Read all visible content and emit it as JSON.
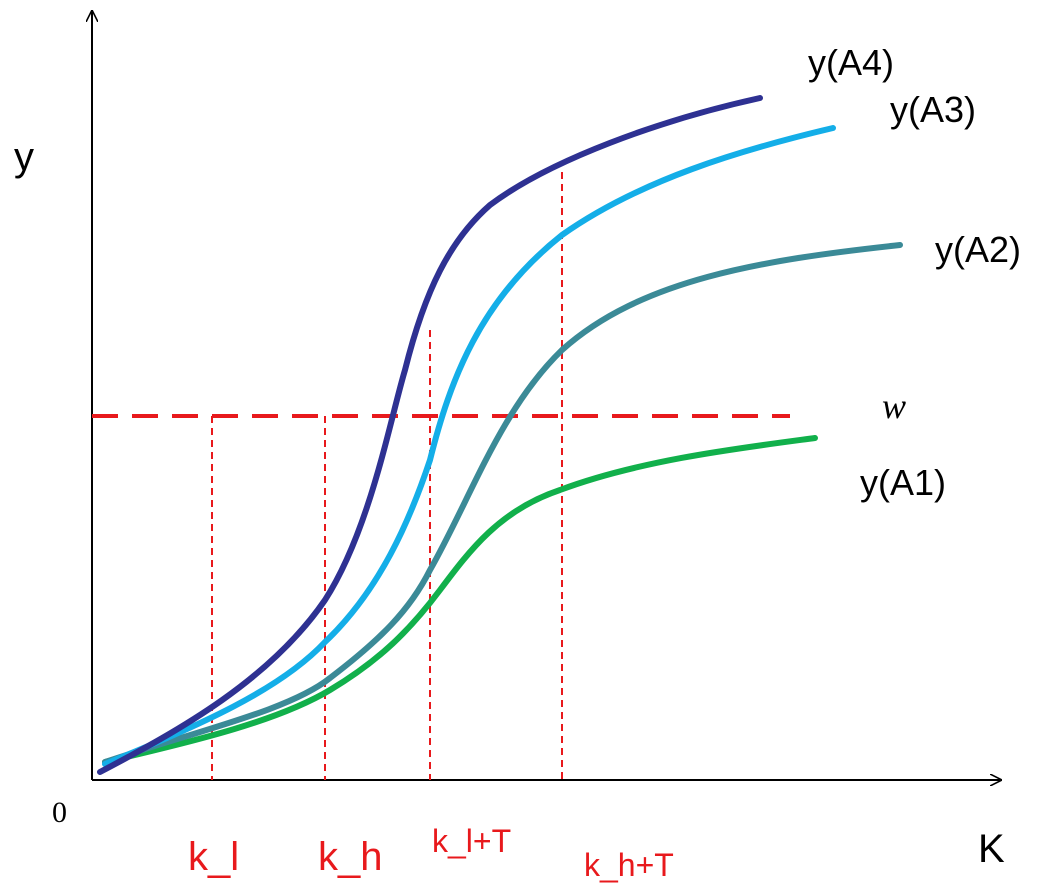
{
  "axes": {
    "y_label": "y",
    "x_label": "K",
    "origin_label": "0"
  },
  "threshold": {
    "label": "w",
    "color": "#e8191c"
  },
  "curves": [
    {
      "name": "y(A1)",
      "color": "#11b04b"
    },
    {
      "name": "y(A2)",
      "color": "#3b8a97"
    },
    {
      "name": "y(A3)",
      "color": "#14aee8"
    },
    {
      "name": "y(A4)",
      "color": "#2e3192"
    }
  ],
  "markers": [
    {
      "label": "k_l"
    },
    {
      "label": "k_h"
    },
    {
      "label": "k_l+T"
    },
    {
      "label": "k_h+T"
    }
  ],
  "colors": {
    "axis": "#000000",
    "guide": "#e8191c",
    "text": "#000000",
    "marker_text": "#e8191c"
  }
}
